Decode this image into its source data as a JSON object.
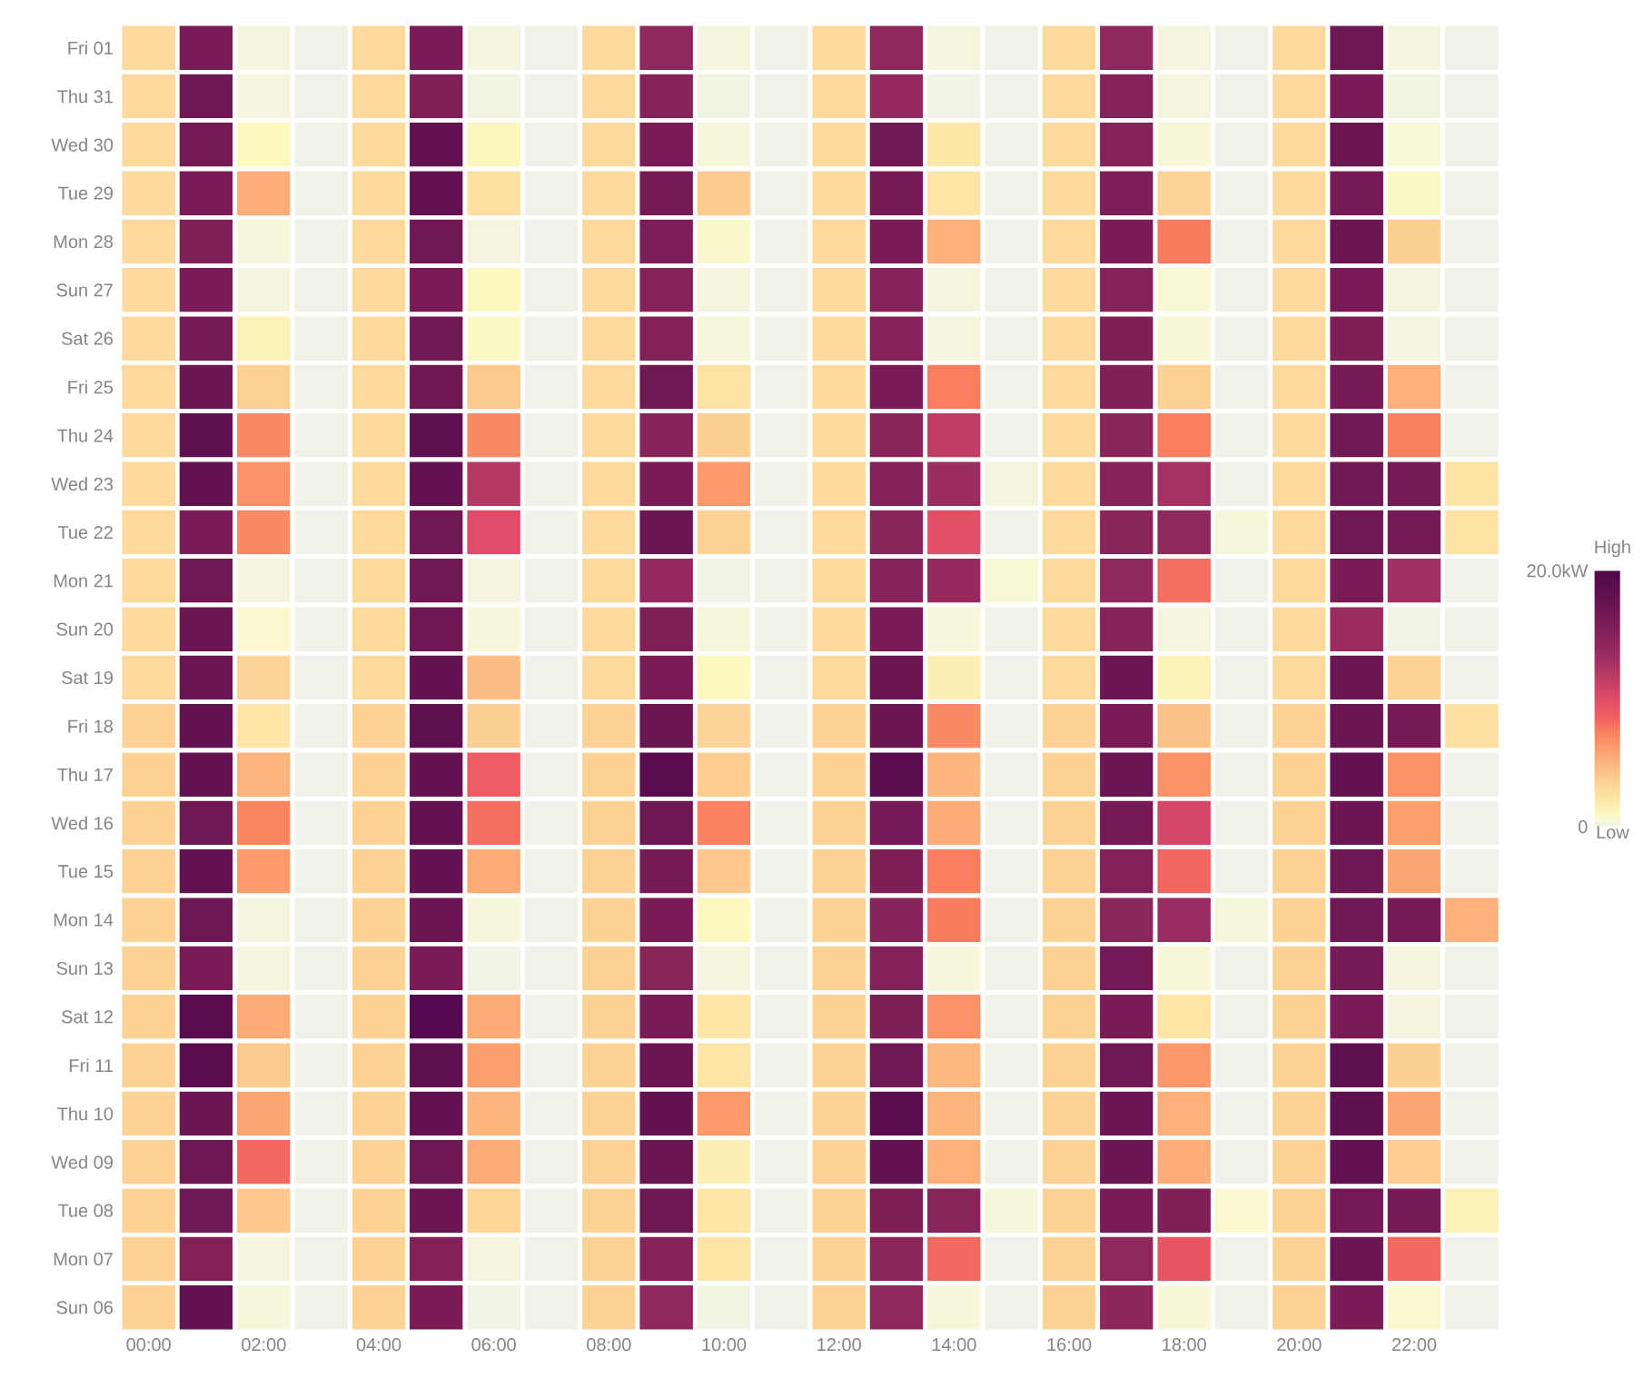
{
  "chart_data": {
    "type": "heatmap",
    "categories": [
      "00:00",
      null,
      "02:00",
      null,
      "04:00",
      null,
      "06:00",
      null,
      "08:00",
      null,
      "10:00",
      null,
      "12:00",
      null,
      "14:00",
      null,
      "16:00",
      null,
      "18:00",
      null,
      "20:00",
      null,
      "22:00",
      null
    ],
    "y_categories": [
      "Fri 01",
      "Thu 31",
      "Wed 30",
      "Tue 29",
      "Mon 28",
      "Sun 27",
      "Sat 26",
      "Fri 25",
      "Thu 24",
      "Wed 23",
      "Tue 22",
      "Mon 21",
      "Sun 20",
      "Sat 19",
      "Fri 18",
      "Thu 17",
      "Wed 16",
      "Tue 15",
      "Mon 14",
      "Sun 13",
      "Sat 12",
      "Fri 11",
      "Thu 10",
      "Wed 09",
      "Tue 08",
      "Mon 07",
      "Sun 06"
    ],
    "cells": [
      [
        3,
        16,
        0.3,
        0,
        3,
        16,
        0.3,
        0,
        3,
        14,
        0.3,
        0,
        3,
        14,
        0.3,
        0,
        3,
        14,
        0.3,
        0,
        3,
        17,
        0.3,
        0
      ],
      [
        3,
        17,
        0.3,
        0,
        3,
        15.3,
        0.2,
        0,
        3,
        15,
        0.2,
        0,
        3,
        13.8,
        0.1,
        0,
        3,
        15,
        0.3,
        0,
        3,
        16,
        0.2,
        0
      ],
      [
        3,
        16.5,
        1,
        0,
        3,
        18,
        1.1,
        0,
        3,
        16,
        0.4,
        0,
        3,
        16.8,
        2,
        0,
        3,
        15,
        0.5,
        0,
        3,
        17.2,
        0.6,
        0
      ],
      [
        3,
        16,
        5.3,
        0,
        3,
        18,
        2.6,
        0,
        3,
        16.3,
        3.8,
        0,
        3,
        16.3,
        2.2,
        0,
        3,
        15.5,
        3.3,
        0,
        3,
        16.3,
        0.9,
        0
      ],
      [
        3,
        15.3,
        0.4,
        0,
        3,
        16.7,
        0.3,
        0,
        3,
        15.5,
        0.8,
        0,
        3,
        16,
        5.2,
        0,
        3,
        16,
        7.6,
        0,
        3,
        17.2,
        3.6,
        0
      ],
      [
        3,
        15.8,
        0.3,
        0,
        3,
        16,
        1,
        0,
        3,
        15,
        0.3,
        0,
        3,
        14.9,
        0.3,
        0,
        3,
        15,
        0.6,
        0,
        3,
        16,
        0.3,
        0
      ],
      [
        3,
        16.2,
        1.4,
        0,
        3,
        16.8,
        0.9,
        0,
        3,
        15.2,
        0.4,
        0,
        3,
        15,
        0.3,
        0,
        3,
        15.6,
        0.5,
        0,
        3,
        15.6,
        0.3,
        0
      ],
      [
        3,
        17.2,
        3.5,
        0,
        3,
        17,
        3.9,
        0,
        3,
        16.8,
        2.4,
        0,
        3,
        16,
        7.5,
        0,
        3,
        15.3,
        3.5,
        0,
        3,
        16.3,
        5.2,
        0
      ],
      [
        3,
        18.3,
        7,
        0,
        3,
        18.3,
        7,
        0,
        3,
        14.8,
        3.6,
        0,
        3,
        14.7,
        11.5,
        0,
        3,
        14.5,
        7.5,
        0,
        3,
        16.8,
        7.4,
        0
      ],
      [
        3,
        18,
        6.7,
        0,
        3,
        18,
        12,
        0,
        3,
        15.8,
        6.3,
        0,
        3,
        15.2,
        13.3,
        0.3,
        3,
        14.8,
        12.8,
        0,
        3,
        16.8,
        16.3,
        2.4
      ],
      [
        3,
        15.8,
        7,
        0,
        3,
        16.8,
        10,
        0,
        3,
        17.2,
        3.4,
        0,
        3,
        14.5,
        9.7,
        0,
        3,
        14.5,
        14.2,
        0.4,
        3,
        16.8,
        16.1,
        2.4
      ],
      [
        3,
        16.8,
        0.3,
        0,
        3,
        16.8,
        0.3,
        0,
        3,
        13.9,
        0.1,
        0,
        3,
        14.9,
        13.8,
        0.6,
        3,
        14,
        8,
        0,
        3,
        15.9,
        13,
        0
      ],
      [
        3,
        17.2,
        0.7,
        0,
        3,
        17,
        0.4,
        0,
        3,
        15.4,
        0.4,
        0,
        3,
        15.8,
        0.4,
        0,
        3,
        14.8,
        0.3,
        0,
        3,
        13.4,
        0.1,
        0
      ],
      [
        3,
        17.2,
        3.3,
        0,
        3,
        17.8,
        4.6,
        0,
        3,
        15.9,
        1,
        0,
        3,
        17.2,
        1.5,
        0,
        3,
        17.2,
        1.3,
        0,
        3,
        17.2,
        3.4,
        0
      ],
      [
        3.4,
        17.8,
        2.1,
        0,
        3.4,
        18.3,
        3.6,
        0,
        3.4,
        17.2,
        3.3,
        0,
        3.4,
        17.2,
        7,
        0,
        3.4,
        16,
        4.3,
        0,
        3.4,
        17.2,
        16.3,
        2.6
      ],
      [
        3.4,
        17.8,
        5,
        0,
        3.4,
        17.8,
        8.8,
        0,
        3.4,
        19,
        3.7,
        0,
        3.4,
        18.7,
        4.9,
        0,
        3.4,
        17.2,
        6.6,
        0,
        3.4,
        18,
        6.6,
        0
      ],
      [
        3.4,
        16.8,
        7.2,
        0,
        3.4,
        18,
        8,
        0,
        3.4,
        17,
        7.3,
        0,
        3.4,
        16.4,
        5.4,
        0,
        3.4,
        16.3,
        10.5,
        0,
        3.4,
        17.2,
        6,
        0
      ],
      [
        3.4,
        18,
        6.3,
        0,
        3.4,
        17.8,
        5.5,
        0,
        3.4,
        16.3,
        4,
        0,
        3.4,
        15.6,
        7.5,
        0,
        3.4,
        15.2,
        8.3,
        0,
        3.4,
        17,
        5.7,
        0
      ],
      [
        3.4,
        17,
        0.3,
        0,
        3.4,
        17.2,
        0.4,
        0,
        3.4,
        15.9,
        1,
        0,
        3.4,
        14.8,
        7.6,
        0,
        3.4,
        14.4,
        13.5,
        0.4,
        3.4,
        16.8,
        16.3,
        5.2
      ],
      [
        3.4,
        15.9,
        0.3,
        0,
        3.4,
        15.9,
        0.1,
        0,
        3.4,
        14.6,
        0.3,
        0,
        3.4,
        15.2,
        0.4,
        0,
        3.4,
        16.4,
        0.5,
        0,
        3.4,
        16.3,
        0.3,
        0
      ],
      [
        3.4,
        19,
        5.5,
        0,
        3.4,
        19.5,
        5.5,
        0,
        3.4,
        15.9,
        2.1,
        0,
        3.4,
        15.6,
        6.7,
        0,
        3.4,
        15.9,
        2.2,
        0,
        3.4,
        15.9,
        0.3,
        0
      ],
      [
        3.4,
        18.8,
        3.9,
        0,
        3.4,
        18.3,
        6,
        0,
        3.4,
        17.2,
        2.2,
        0,
        3.4,
        16.8,
        4.8,
        0,
        3.4,
        16.8,
        6.4,
        0,
        3.4,
        18.3,
        3.6,
        0
      ],
      [
        3.4,
        17.2,
        5.7,
        0,
        3.4,
        18,
        4.9,
        0,
        3.4,
        18,
        6.3,
        0,
        3.4,
        19,
        5,
        0,
        3.4,
        17.2,
        5.2,
        0,
        3.4,
        18.3,
        5.7,
        0
      ],
      [
        3.4,
        17,
        8.2,
        0,
        3.4,
        17,
        5.4,
        0,
        3.4,
        17.2,
        1.5,
        0,
        3.4,
        18,
        5.2,
        0,
        3.4,
        17.2,
        5.3,
        0,
        3.4,
        18,
        3.7,
        0
      ],
      [
        3.4,
        16.8,
        4,
        0,
        3.4,
        17.2,
        3.2,
        0,
        3.4,
        17,
        2.1,
        0,
        3.4,
        15.6,
        14.6,
        0.4,
        3.4,
        16,
        15.4,
        0.7,
        3.4,
        16.4,
        16.3,
        1.4
      ],
      [
        3.4,
        15.2,
        0.3,
        0,
        3.4,
        15.2,
        0.3,
        0,
        3.4,
        15,
        2.2,
        0,
        3.4,
        14.4,
        8.2,
        0,
        3.4,
        14.2,
        9.3,
        0,
        3.4,
        17.2,
        8.2,
        0
      ],
      [
        3.4,
        18,
        0.4,
        0,
        3.4,
        15.9,
        0.1,
        0,
        3.4,
        14,
        0.2,
        0,
        3.4,
        14,
        0.4,
        0,
        3.4,
        14.3,
        0.5,
        0,
        3.4,
        15.9,
        0.7,
        0
      ]
    ],
    "clim": [
      0,
      20
    ],
    "cticks": [
      0,
      {
        "value": 20,
        "label": "20.0kW"
      }
    ],
    "annotations": [
      "High",
      "Low"
    ]
  }
}
